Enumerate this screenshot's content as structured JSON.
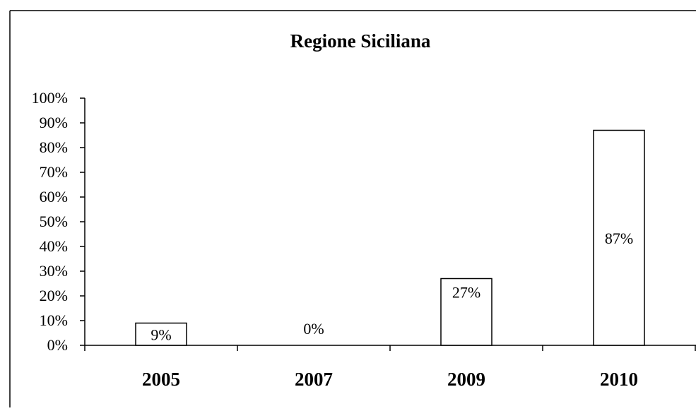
{
  "chart_data": {
    "type": "bar",
    "title": "Regione Siciliana",
    "categories": [
      "2005",
      "2007",
      "2009",
      "2010"
    ],
    "values": [
      9,
      0,
      27,
      87
    ],
    "data_labels": [
      "9%",
      "0%",
      "27%",
      "87%"
    ],
    "xlabel": "",
    "ylabel": "",
    "ylim": [
      0,
      100
    ],
    "yticks": [
      "0%",
      "10%",
      "20%",
      "30%",
      "40%",
      "50%",
      "60%",
      "70%",
      "80%",
      "90%",
      "100%"
    ],
    "grid": false,
    "legend": "none",
    "colors": {
      "bar_fill": "#ffffff",
      "bar_stroke": "#000000",
      "axis": "#000000",
      "frame": "#000000"
    }
  }
}
